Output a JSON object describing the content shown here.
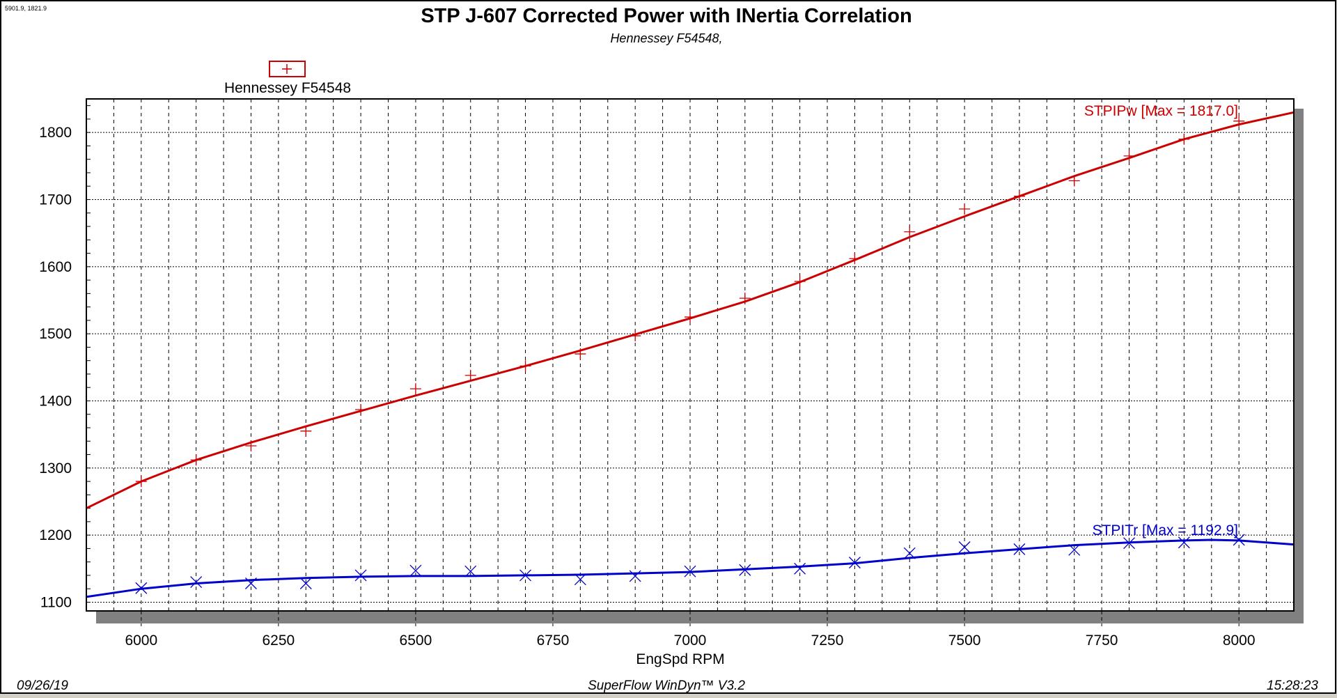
{
  "coord_readout": "5901.9, 1821.9",
  "footer": {
    "date": "09/26/19",
    "software": "SuperFlow WinDyn™ V3.2",
    "time": "15:28:23"
  },
  "legend": {
    "label": "Hennessey F54548",
    "marker": "plus",
    "color": "#cc0000"
  },
  "chart_data": {
    "type": "line",
    "title": "STP J-607 Corrected Power with INertia Correlation",
    "subtitle": "Hennessey F54548,",
    "xlabel": "EngSpd RPM",
    "ylabel": "",
    "xlim": [
      5900,
      8100
    ],
    "ylim": [
      1087,
      1850
    ],
    "xticks": [
      6000,
      6250,
      6500,
      6750,
      7000,
      7250,
      7500,
      7750,
      8000
    ],
    "yticks": [
      1100,
      1200,
      1300,
      1400,
      1500,
      1600,
      1700,
      1800
    ],
    "grid": true,
    "series": [
      {
        "name": "STPIPw [Max = 1817.0]",
        "color": "#cc0000",
        "marker": "plus",
        "points_x": [
          6000,
          6100,
          6200,
          6300,
          6400,
          6500,
          6600,
          6700,
          6800,
          6900,
          7000,
          7100,
          7200,
          7300,
          7400,
          7500,
          7600,
          7700,
          7800,
          7900,
          8000
        ],
        "points_y": [
          1280,
          1312,
          1333,
          1355,
          1387,
          1418,
          1438,
          1452,
          1470,
          1497,
          1525,
          1553,
          1578,
          1612,
          1652,
          1686,
          1705,
          1728,
          1765,
          1790,
          1817
        ],
        "curve_x": [
          5900,
          6000,
          6100,
          6200,
          6300,
          6400,
          6500,
          6600,
          6700,
          6800,
          6900,
          7000,
          7100,
          7200,
          7300,
          7400,
          7500,
          7600,
          7700,
          7800,
          7900,
          8000,
          8100
        ],
        "curve_y": [
          1240,
          1280,
          1312,
          1338,
          1362,
          1385,
          1408,
          1430,
          1452,
          1475,
          1499,
          1523,
          1548,
          1577,
          1610,
          1644,
          1675,
          1705,
          1735,
          1762,
          1790,
          1812,
          1830
        ]
      },
      {
        "name": "STPITr [Max = 1192.9]",
        "color": "#0000cc",
        "marker": "x",
        "points_x": [
          6000,
          6100,
          6200,
          6300,
          6400,
          6500,
          6600,
          6700,
          6800,
          6900,
          7000,
          7100,
          7200,
          7300,
          7400,
          7500,
          7600,
          7700,
          7800,
          7900,
          8000
        ],
        "points_y": [
          1121,
          1130,
          1128,
          1128,
          1140,
          1147,
          1146,
          1140,
          1134,
          1139,
          1146,
          1148,
          1150,
          1159,
          1173,
          1182,
          1179,
          1178,
          1188,
          1189,
          1193
        ],
        "curve_x": [
          5900,
          6000,
          6100,
          6200,
          6300,
          6400,
          6500,
          6600,
          6700,
          6800,
          6900,
          7000,
          7100,
          7200,
          7300,
          7400,
          7500,
          7600,
          7700,
          7800,
          7900,
          7950,
          8000,
          8100
        ],
        "curve_y": [
          1108,
          1120,
          1128,
          1133,
          1136,
          1138,
          1139,
          1139,
          1140,
          1141,
          1143,
          1145,
          1149,
          1153,
          1158,
          1166,
          1173,
          1179,
          1185,
          1189,
          1192,
          1192.9,
          1192,
          1186
        ]
      }
    ]
  }
}
